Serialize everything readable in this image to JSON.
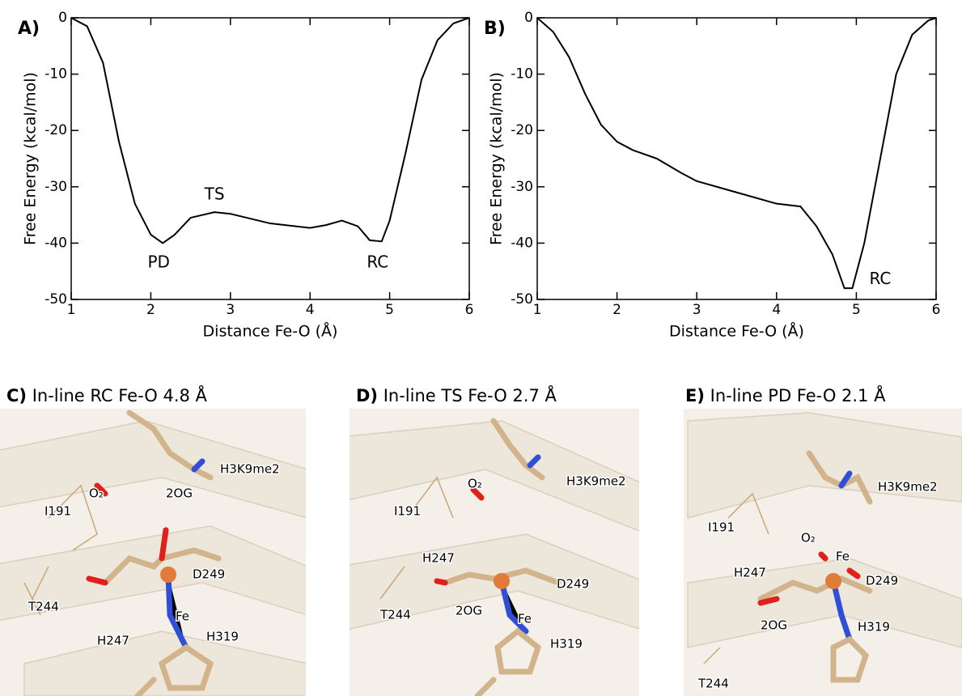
{
  "chart_data": [
    {
      "type": "line",
      "panel_label": "A)",
      "xlabel": "Distance Fe-O (Å)",
      "ylabel": "Free Energy (kcal/mol)",
      "x": [
        1.0,
        1.2,
        1.4,
        1.6,
        1.8,
        2.0,
        2.15,
        2.3,
        2.5,
        2.8,
        3.0,
        3.5,
        4.0,
        4.2,
        4.4,
        4.6,
        4.75,
        4.9,
        5.0,
        5.2,
        5.4,
        5.6,
        5.8,
        6.0
      ],
      "series": [
        {
          "color": "#000000",
          "values": [
            0,
            -1.5,
            -8,
            -22,
            -33,
            -38.5,
            -40,
            -38.5,
            -35.5,
            -34.5,
            -34.8,
            -36.5,
            -37.3,
            -36.8,
            -36,
            -37,
            -39.5,
            -39.7,
            -36,
            -24,
            -11,
            -4,
            -1,
            0
          ]
        }
      ],
      "xlim": [
        1,
        6
      ],
      "ylim": [
        -50,
        0
      ],
      "xticks": [
        1,
        2,
        3,
        4,
        5,
        6
      ],
      "yticks": [
        -50,
        -40,
        -30,
        -20,
        -10,
        0
      ],
      "annotations": [
        {
          "text": "TS",
          "x": 2.8,
          "y": -31.5
        },
        {
          "text": "PD",
          "x": 2.1,
          "y": -43.5
        },
        {
          "text": "RC",
          "x": 4.85,
          "y": -43.5
        }
      ]
    },
    {
      "type": "line",
      "panel_label": "B)",
      "xlabel": "Distance Fe-O (Å)",
      "ylabel": "Free Energy (kcal/mol)",
      "x": [
        1.0,
        1.2,
        1.4,
        1.6,
        1.8,
        2.0,
        2.2,
        2.5,
        2.8,
        3.0,
        3.5,
        4.0,
        4.3,
        4.5,
        4.7,
        4.85,
        4.95,
        5.1,
        5.3,
        5.5,
        5.7,
        5.9,
        6.0
      ],
      "series": [
        {
          "color": "#000000",
          "values": [
            0,
            -2.5,
            -7,
            -13.5,
            -19,
            -22,
            -23.5,
            -25,
            -27.5,
            -29,
            -31,
            -33,
            -33.5,
            -37,
            -42,
            -48,
            -48,
            -40,
            -25,
            -10,
            -3,
            -0.5,
            0
          ]
        }
      ],
      "xlim": [
        1,
        6
      ],
      "ylim": [
        -50,
        0
      ],
      "xticks": [
        1,
        2,
        3,
        4,
        5,
        6
      ],
      "yticks": [
        -50,
        -40,
        -30,
        -20,
        -10,
        0
      ],
      "annotations": [
        {
          "text": "RC",
          "x": 5.3,
          "y": -46.5
        }
      ]
    }
  ],
  "panels": [
    {
      "label": "C)",
      "title": "In-line RC Fe-O 4.8 Å",
      "labels": [
        "I191",
        "H3K9me2",
        "O₂",
        "2OG",
        "D249",
        "Fe",
        "T244",
        "H247",
        "H319"
      ]
    },
    {
      "label": "D)",
      "title": "In-line TS Fe-O 2.7 Å",
      "labels": [
        "I191",
        "H3K9me2",
        "O₂",
        "H247",
        "D249",
        "2OG",
        "Fe",
        "T244",
        "H319"
      ]
    },
    {
      "label": "E)",
      "title": "In-line PD Fe-O 2.1 Å",
      "labels": [
        "I191",
        "H3K9me2",
        "O₂",
        "Fe",
        "H247",
        "D249",
        "2OG",
        "H319",
        "T244"
      ]
    }
  ]
}
